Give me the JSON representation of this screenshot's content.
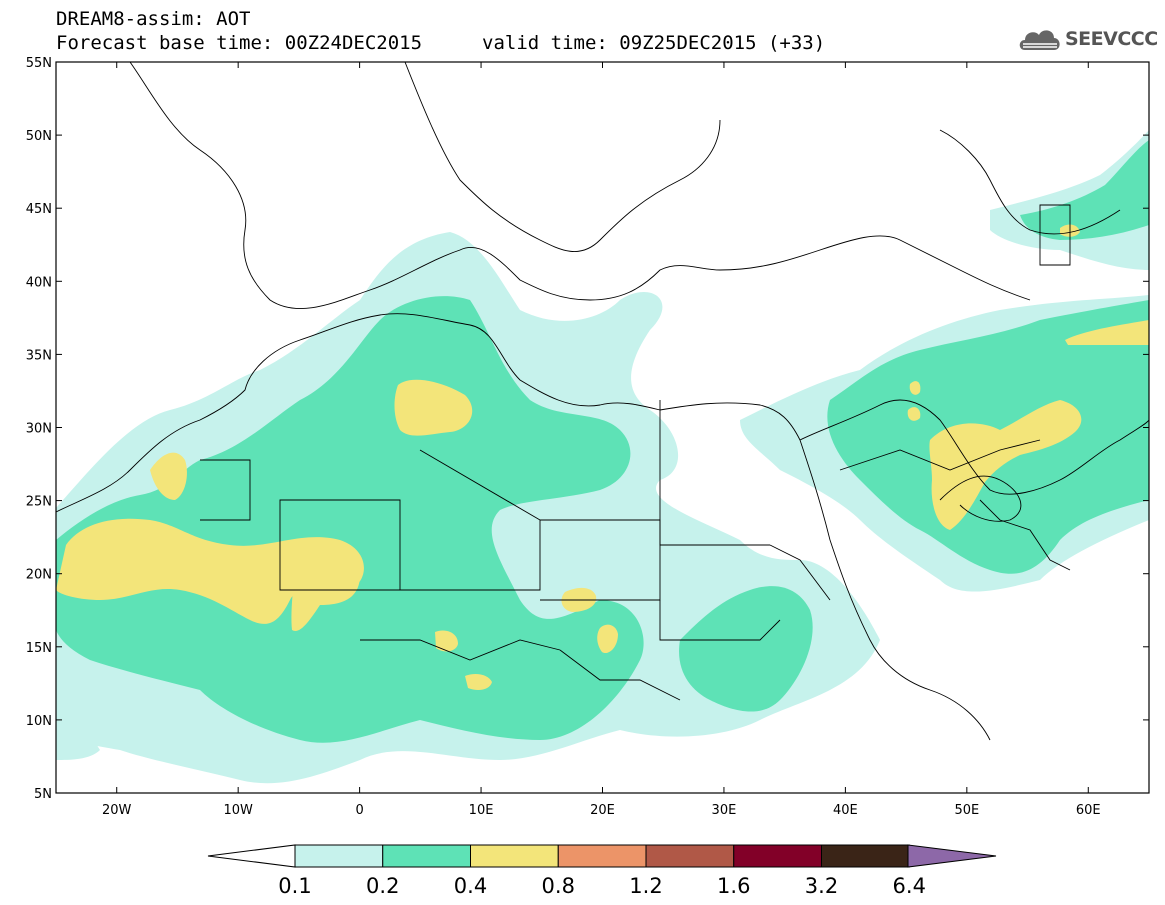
{
  "header": {
    "title_line1": "DREAM8-assim: AOT",
    "title_line2": "Forecast base time: 00Z24DEC2015",
    "valid_time": "valid time: 09Z25DEC2015 (+33)",
    "logo_text": "SEEVCCC"
  },
  "map": {
    "lat_labels": [
      "55N",
      "50N",
      "45N",
      "40N",
      "35N",
      "30N",
      "25N",
      "20N",
      "15N",
      "10N",
      "5N"
    ],
    "lon_labels": [
      "20W",
      "10W",
      "0",
      "10E",
      "20E",
      "30E",
      "40E",
      "50E",
      "60E"
    ],
    "extent": {
      "lon_min": -25,
      "lon_max": 65,
      "lat_min": 5,
      "lat_max": 55
    }
  },
  "colorbar": {
    "labels": [
      "0.1",
      "0.2",
      "0.4",
      "0.8",
      "1.2",
      "1.6",
      "3.2",
      "6.4"
    ],
    "colors": [
      "#c6f2ec",
      "#5ee2b6",
      "#f3e57a",
      "#ec9468",
      "#b05847",
      "#820028",
      "#3a2417",
      "#8d68a8"
    ]
  },
  "icons": {
    "logo": "cloud-icon"
  }
}
